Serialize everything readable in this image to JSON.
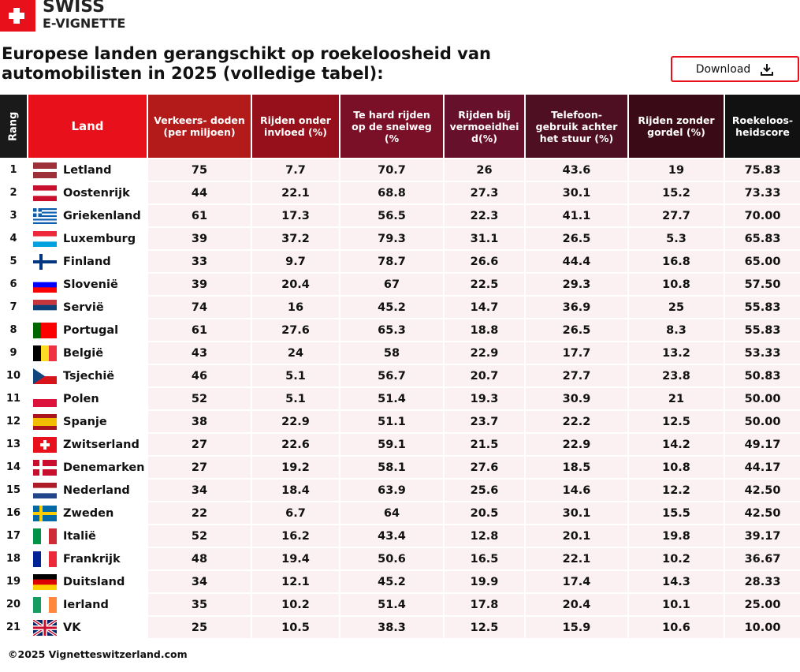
{
  "header": {
    "logo_line1": "SWISS",
    "logo_line2": "E-VIGNETTE"
  },
  "title": "Europese landen gerangschikt op roekeloosheid van automobilisten in 2025 (volledige tabel):",
  "download": "Download",
  "table": {
    "columns": [
      "Rang",
      "Land",
      "Verkeers- doden (per miljoen)",
      "Rijden onder invloed (%)",
      "Te hard rijden op de snelweg (%",
      "Rijden bij vermoeidheid(%)",
      "Telefoon-gebruik achter het stuur (%)",
      "Rijden zonder gordel (%)",
      "Roekeloos-heidscore"
    ],
    "rows": [
      [
        "1",
        "Letland",
        "75",
        "7.7",
        "70.7",
        "26",
        "43.6",
        "19",
        "75.83"
      ],
      [
        "2",
        "Oostenrijk",
        "44",
        "22.1",
        "68.8",
        "27.3",
        "30.1",
        "15.2",
        "73.33"
      ],
      [
        "3",
        "Griekenland",
        "61",
        "17.3",
        "56.5",
        "22.3",
        "41.1",
        "27.7",
        "70.00"
      ],
      [
        "4",
        "Luxemburg",
        "39",
        "37.2",
        "79.3",
        "31.1",
        "26.5",
        "5.3",
        "65.83"
      ],
      [
        "5",
        "Finland",
        "33",
        "9.7",
        "78.7",
        "26.6",
        "44.4",
        "16.8",
        "65.00"
      ],
      [
        "6",
        "Slovenië",
        "39",
        "20.4",
        "67",
        "22.5",
        "29.3",
        "10.8",
        "57.50"
      ],
      [
        "7",
        "Servië",
        "74",
        "16",
        "45.2",
        "14.7",
        "36.9",
        "25",
        "55.83"
      ],
      [
        "8",
        "Portugal",
        "61",
        "27.6",
        "65.3",
        "18.8",
        "26.5",
        "8.3",
        "55.83"
      ],
      [
        "9",
        "België",
        "43",
        "24",
        "58",
        "22.9",
        "17.7",
        "13.2",
        "53.33"
      ],
      [
        "10",
        "Tsjechië",
        "46",
        "5.1",
        "56.7",
        "20.7",
        "27.7",
        "23.8",
        "50.83"
      ],
      [
        "11",
        "Polen",
        "52",
        "5.1",
        "51.4",
        "19.3",
        "30.9",
        "21",
        "50.00"
      ],
      [
        "12",
        "Spanje",
        "38",
        "22.9",
        "51.1",
        "23.7",
        "22.2",
        "12.5",
        "50.00"
      ],
      [
        "13",
        "Zwitserland",
        "27",
        "22.6",
        "59.1",
        "21.5",
        "22.9",
        "14.2",
        "49.17"
      ],
      [
        "14",
        "Denemarken",
        "27",
        "19.2",
        "58.1",
        "27.6",
        "18.5",
        "10.8",
        "44.17"
      ],
      [
        "15",
        "Nederland",
        "34",
        "18.4",
        "63.9",
        "25.6",
        "14.6",
        "12.2",
        "42.50"
      ],
      [
        "16",
        "Zweden",
        "22",
        "6.7",
        "64",
        "20.5",
        "30.1",
        "15.5",
        "42.50"
      ],
      [
        "17",
        "Italië",
        "52",
        "16.2",
        "43.4",
        "12.8",
        "20.1",
        "19.8",
        "39.17"
      ],
      [
        "18",
        "Frankrijk",
        "48",
        "19.4",
        "50.6",
        "16.5",
        "22.1",
        "10.2",
        "36.67"
      ],
      [
        "19",
        "Duitsland",
        "34",
        "12.1",
        "45.2",
        "19.9",
        "17.4",
        "14.3",
        "28.33"
      ],
      [
        "20",
        "Ierland",
        "35",
        "10.2",
        "51.4",
        "17.8",
        "20.4",
        "10.1",
        "25.00"
      ],
      [
        "21",
        "VK",
        "25",
        "10.5",
        "38.3",
        "12.5",
        "15.9",
        "10.6",
        "10.00"
      ]
    ]
  },
  "footer": "©2025 Vignetteswitzerland.com"
}
